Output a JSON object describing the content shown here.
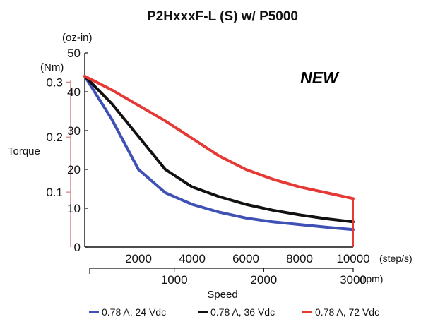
{
  "chart_data": {
    "type": "line",
    "title": "P2HxxxF-L (S) w/ P5000",
    "badge": "NEW",
    "badge_color": "#e02020",
    "ylabel": "Torque",
    "xlabel": "Speed",
    "y_units_nm": "(Nm)",
    "y_units_ozin": "(oz-in)",
    "x_units_steps": "(step/s)",
    "x_units_rpm": "(rpm)",
    "ylim_ozin": [
      0,
      50
    ],
    "xlim_steps": [
      0,
      10000
    ],
    "y_ticks_ozin": [
      "0",
      "10",
      "20",
      "30",
      "40",
      "50"
    ],
    "y_ticks_nm": [
      "0.1",
      "0.2",
      "0.3"
    ],
    "x_ticks_steps": [
      "2000",
      "4000",
      "6000",
      "8000",
      "10000"
    ],
    "x_ticks_rpm": [
      "1000",
      "2000",
      "3000"
    ],
    "legend_position": "bottom",
    "series": [
      {
        "name": "0.78 A, 24 Vdc",
        "color": "#3f51b5",
        "x": [
          0,
          1000,
          2000,
          3000,
          4000,
          5000,
          6000,
          7000,
          8000,
          9000,
          10000
        ],
        "y": [
          44,
          33,
          20,
          14,
          11,
          9,
          7.5,
          6.5,
          5.8,
          5.1,
          4.5
        ]
      },
      {
        "name": "0.78 A, 36 Vdc",
        "color": "#111111",
        "x": [
          0,
          1000,
          2000,
          3000,
          4000,
          5000,
          6000,
          7000,
          8000,
          9000,
          10000
        ],
        "y": [
          44,
          37,
          28.5,
          20,
          15.5,
          13,
          11,
          9.5,
          8.3,
          7.3,
          6.5
        ]
      },
      {
        "name": "0.78 A, 72 Vdc",
        "color": "#e53935",
        "x": [
          0,
          1000,
          2000,
          3000,
          4000,
          5000,
          6000,
          7000,
          8000,
          9000,
          10000
        ],
        "y": [
          44,
          40.5,
          36.5,
          32.5,
          28,
          23.5,
          20,
          17.5,
          15.5,
          14,
          12.5
        ]
      }
    ]
  }
}
